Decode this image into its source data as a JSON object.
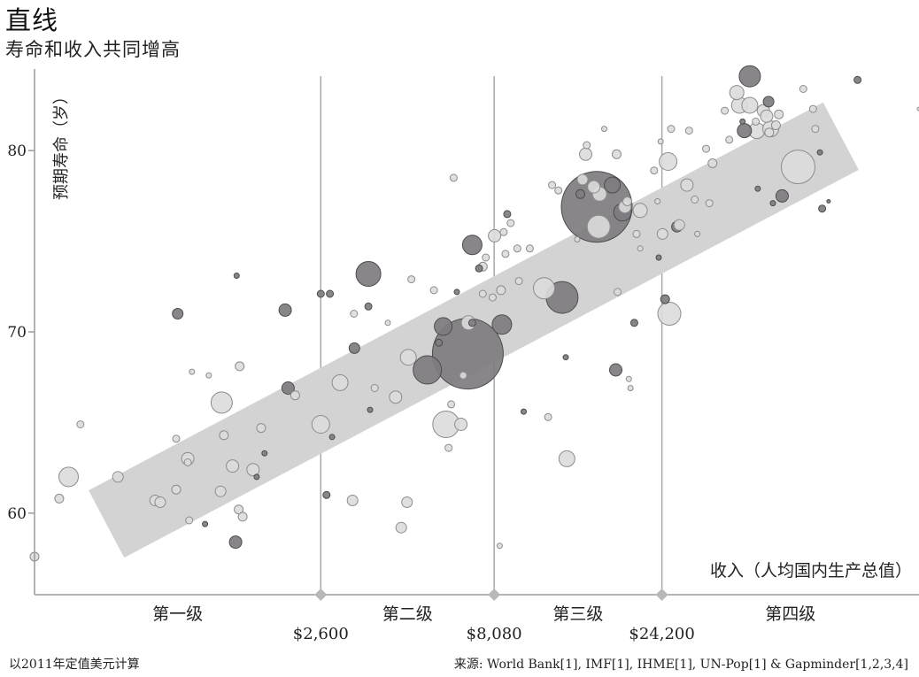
{
  "title": "直线",
  "subtitle": "寿命和收入共同增高",
  "footnote_left": "以2011年定值美元计算",
  "footnote_right": "来源: World Bank[1], IMF[1], IHME[1], UN-Pop[1] & Gapminder[1,2,3,4]",
  "colors": {
    "band": "#d3d3d3",
    "dark_bubble": "#7f7c80",
    "light_bubble": "#dcdcdc",
    "axis": "#9a9a9a",
    "divider": "#a8a8a8"
  },
  "chart_data": {
    "type": "scatter",
    "title": "直线",
    "subtitle": "寿命和收入共同增高",
    "xlabel": "收入（人均国内生产总值）",
    "ylabel": "预期寿命（岁）",
    "x_scale": "log",
    "xlim": [
      400,
      130000
    ],
    "ylim": [
      55.5,
      84.5
    ],
    "yticks": [
      60,
      70,
      80
    ],
    "dividers": [
      {
        "value": 2600,
        "label": "$2,600"
      },
      {
        "value": 8080,
        "label": "$8,080"
      },
      {
        "value": 24200,
        "label": "$24,200"
      }
    ],
    "levels": [
      "第一级",
      "第二级",
      "第三级",
      "第四级"
    ],
    "trend_band": {
      "from": [
        640,
        59.4
      ],
      "to": [
        78000,
        80.8
      ],
      "width_years": 4.2
    },
    "grid": false,
    "legend": "none",
    "points": [
      [
        400,
        57.6,
        5,
        "light"
      ],
      [
        470,
        60.8,
        5,
        "light"
      ],
      [
        500,
        62.0,
        11,
        "light"
      ],
      [
        540,
        64.9,
        4,
        "light"
      ],
      [
        690,
        62.0,
        6,
        "light"
      ],
      [
        880,
        60.7,
        6,
        "light"
      ],
      [
        910,
        60.6,
        6,
        "light"
      ],
      [
        1010,
        61.3,
        5,
        "light"
      ],
      [
        1010,
        64.1,
        4,
        "light"
      ],
      [
        1020,
        71.0,
        6,
        "dark"
      ],
      [
        1090,
        63.0,
        7,
        "light"
      ],
      [
        1090,
        62.8,
        4,
        "light"
      ],
      [
        1100,
        59.6,
        4,
        "light"
      ],
      [
        1120,
        67.8,
        3,
        "light"
      ],
      [
        1220,
        59.4,
        3,
        "dark"
      ],
      [
        1250,
        67.6,
        3,
        "light"
      ],
      [
        1350,
        61.2,
        6,
        "light"
      ],
      [
        1360,
        66.1,
        12,
        "light"
      ],
      [
        1380,
        64.3,
        5,
        "light"
      ],
      [
        1460,
        62.6,
        7,
        "light"
      ],
      [
        1490,
        58.4,
        7,
        "dark"
      ],
      [
        1500,
        73.1,
        3,
        "dark"
      ],
      [
        1520,
        60.2,
        5,
        "light"
      ],
      [
        1530,
        68.1,
        5,
        "light"
      ],
      [
        1560,
        59.8,
        5,
        "light"
      ],
      [
        1670,
        62.4,
        7,
        "light"
      ],
      [
        1710,
        62.0,
        3,
        "dark"
      ],
      [
        1760,
        64.7,
        5,
        "light"
      ],
      [
        1800,
        63.3,
        3,
        "dark"
      ],
      [
        2060,
        71.2,
        7,
        "dark"
      ],
      [
        2100,
        66.9,
        7,
        "dark"
      ],
      [
        2200,
        66.5,
        5,
        "light"
      ],
      [
        2600,
        64.9,
        10,
        "light"
      ],
      [
        2600,
        72.1,
        4,
        "dark"
      ],
      [
        2760,
        72.1,
        4,
        "dark"
      ],
      [
        2700,
        61.0,
        4,
        "dark"
      ],
      [
        2800,
        64.2,
        3,
        "dark"
      ],
      [
        2950,
        67.2,
        9,
        "light"
      ],
      [
        3200,
        60.7,
        6,
        "light"
      ],
      [
        3240,
        69.1,
        6,
        "dark"
      ],
      [
        3230,
        71.0,
        4,
        "light"
      ],
      [
        3550,
        73.2,
        14,
        "dark"
      ],
      [
        3550,
        71.4,
        4,
        "dark"
      ],
      [
        3590,
        65.7,
        3,
        "dark"
      ],
      [
        3700,
        66.9,
        4,
        "light"
      ],
      [
        4030,
        70.5,
        3,
        "light"
      ],
      [
        4240,
        66.4,
        7,
        "light"
      ],
      [
        4400,
        59.2,
        6,
        "light"
      ],
      [
        4570,
        60.6,
        6,
        "light"
      ],
      [
        4610,
        68.6,
        9,
        "light"
      ],
      [
        4700,
        72.9,
        4,
        "light"
      ],
      [
        5220,
        67.9,
        16,
        "dark"
      ],
      [
        5450,
        72.3,
        4,
        "light"
      ],
      [
        5630,
        69.4,
        4,
        "dark"
      ],
      [
        5790,
        70.3,
        10,
        "dark"
      ],
      [
        5900,
        64.9,
        15,
        "light"
      ],
      [
        6000,
        63.6,
        4,
        "light"
      ],
      [
        6100,
        66.0,
        4,
        "light"
      ],
      [
        6200,
        78.5,
        4,
        "light"
      ],
      [
        6330,
        72.2,
        3,
        "dark"
      ],
      [
        6500,
        64.9,
        7,
        "light"
      ],
      [
        6600,
        67.6,
        4,
        "light"
      ],
      [
        6830,
        70.5,
        8,
        "light"
      ],
      [
        6800,
        68.8,
        40,
        "dark"
      ],
      [
        7000,
        74.8,
        11,
        "dark"
      ],
      [
        7000,
        70.5,
        4,
        "dark"
      ],
      [
        7320,
        73.5,
        4,
        "dark"
      ],
      [
        7500,
        73.6,
        5,
        "light"
      ],
      [
        7500,
        72.1,
        4,
        "light"
      ],
      [
        7650,
        74.1,
        4,
        "light"
      ],
      [
        8000,
        71.9,
        4,
        "light"
      ],
      [
        8100,
        75.3,
        7,
        "light"
      ],
      [
        8380,
        58.2,
        3,
        "light"
      ],
      [
        8450,
        72.3,
        5,
        "light"
      ],
      [
        8500,
        70.4,
        11,
        "dark"
      ],
      [
        8600,
        75.5,
        4,
        "light"
      ],
      [
        8700,
        74.3,
        4,
        "light"
      ],
      [
        8800,
        76.5,
        4,
        "dark"
      ],
      [
        9000,
        76.0,
        4,
        "light"
      ],
      [
        9400,
        74.6,
        4,
        "light"
      ],
      [
        9500,
        72.8,
        4,
        "light"
      ],
      [
        9800,
        65.6,
        3,
        "dark"
      ],
      [
        10200,
        74.6,
        4,
        "light"
      ],
      [
        11200,
        72.4,
        12,
        "light"
      ],
      [
        11500,
        65.3,
        4,
        "light"
      ],
      [
        11800,
        78.1,
        4,
        "light"
      ],
      [
        12300,
        77.8,
        4,
        "light"
      ],
      [
        12600,
        71.9,
        18,
        "dark"
      ],
      [
        12900,
        68.6,
        3,
        "dark"
      ],
      [
        13000,
        63.0,
        9,
        "light"
      ],
      [
        13900,
        75.1,
        3,
        "light"
      ],
      [
        14200,
        77.6,
        5,
        "dark"
      ],
      [
        14400,
        78.4,
        6,
        "light"
      ],
      [
        14700,
        79.8,
        7,
        "light"
      ],
      [
        14800,
        80.3,
        4,
        "light"
      ],
      [
        15500,
        78.0,
        7,
        "light"
      ],
      [
        15800,
        76.9,
        40,
        "dark"
      ],
      [
        16000,
        75.8,
        13,
        "light"
      ],
      [
        16100,
        77.6,
        8,
        "light"
      ],
      [
        16600,
        81.2,
        3,
        "light"
      ],
      [
        17500,
        78.1,
        9,
        "dark"
      ],
      [
        17900,
        67.9,
        7,
        "dark"
      ],
      [
        18000,
        79.8,
        5,
        "light"
      ],
      [
        18100,
        72.2,
        4,
        "light"
      ],
      [
        18700,
        76.6,
        10,
        "dark"
      ],
      [
        19000,
        76.9,
        7,
        "light"
      ],
      [
        19300,
        77.2,
        5,
        "light"
      ],
      [
        19500,
        67.4,
        3,
        "light"
      ],
      [
        19700,
        66.9,
        3,
        "light"
      ],
      [
        20200,
        70.5,
        4,
        "dark"
      ],
      [
        20500,
        75.4,
        4,
        "light"
      ],
      [
        21000,
        76.7,
        8,
        "light"
      ],
      [
        21000,
        74.6,
        3,
        "light"
      ],
      [
        23000,
        78.9,
        4,
        "light"
      ],
      [
        23500,
        77.2,
        3,
        "light"
      ],
      [
        23700,
        74.1,
        3,
        "dark"
      ],
      [
        24000,
        80.5,
        3,
        "light"
      ],
      [
        24300,
        75.4,
        6,
        "light"
      ],
      [
        24700,
        71.8,
        5,
        "dark"
      ],
      [
        25200,
        79.4,
        10,
        "light"
      ],
      [
        25400,
        71.0,
        13,
        "light"
      ],
      [
        25700,
        81.2,
        4,
        "light"
      ],
      [
        26700,
        75.8,
        6,
        "dark"
      ],
      [
        27100,
        75.9,
        6,
        "light"
      ],
      [
        28500,
        78.1,
        7,
        "light"
      ],
      [
        28900,
        81.1,
        4,
        "light"
      ],
      [
        30000,
        77.3,
        4,
        "light"
      ],
      [
        30500,
        75.4,
        3,
        "light"
      ],
      [
        32300,
        80.1,
        4,
        "light"
      ],
      [
        33000,
        77.1,
        4,
        "light"
      ],
      [
        33700,
        79.3,
        5,
        "light"
      ],
      [
        36500,
        82.2,
        4,
        "light"
      ],
      [
        37600,
        80.6,
        4,
        "light"
      ],
      [
        39500,
        83.2,
        8,
        "light"
      ],
      [
        40200,
        82.5,
        9,
        "light"
      ],
      [
        41000,
        81.6,
        3,
        "dark"
      ],
      [
        41500,
        81.1,
        8,
        "dark"
      ],
      [
        43000,
        84.1,
        12,
        "dark"
      ],
      [
        43000,
        82.5,
        9,
        "light"
      ],
      [
        44700,
        81.6,
        4,
        "light"
      ],
      [
        45000,
        81.1,
        9,
        "light"
      ],
      [
        45300,
        77.9,
        3,
        "dark"
      ],
      [
        47000,
        82.2,
        7,
        "light"
      ],
      [
        48000,
        81.9,
        7,
        "light"
      ],
      [
        48600,
        82.7,
        6,
        "dark"
      ],
      [
        48800,
        81.0,
        5,
        "light"
      ],
      [
        49300,
        81.2,
        9,
        "light"
      ],
      [
        50000,
        77.1,
        3,
        "dark"
      ],
      [
        51000,
        81.4,
        5,
        "light"
      ],
      [
        52000,
        82.0,
        5,
        "light"
      ],
      [
        53100,
        77.5,
        7,
        "dark"
      ],
      [
        59000,
        79.1,
        19,
        "light"
      ],
      [
        61000,
        83.4,
        4,
        "light"
      ],
      [
        65000,
        82.3,
        4,
        "light"
      ],
      [
        66000,
        81.2,
        4,
        "light"
      ],
      [
        68000,
        79.9,
        3,
        "dark"
      ],
      [
        69000,
        76.8,
        4,
        "dark"
      ],
      [
        72000,
        77.2,
        2,
        "dark"
      ],
      [
        87000,
        83.9,
        4,
        "dark"
      ],
      [
        130000,
        82.3,
        2,
        "light"
      ]
    ]
  }
}
